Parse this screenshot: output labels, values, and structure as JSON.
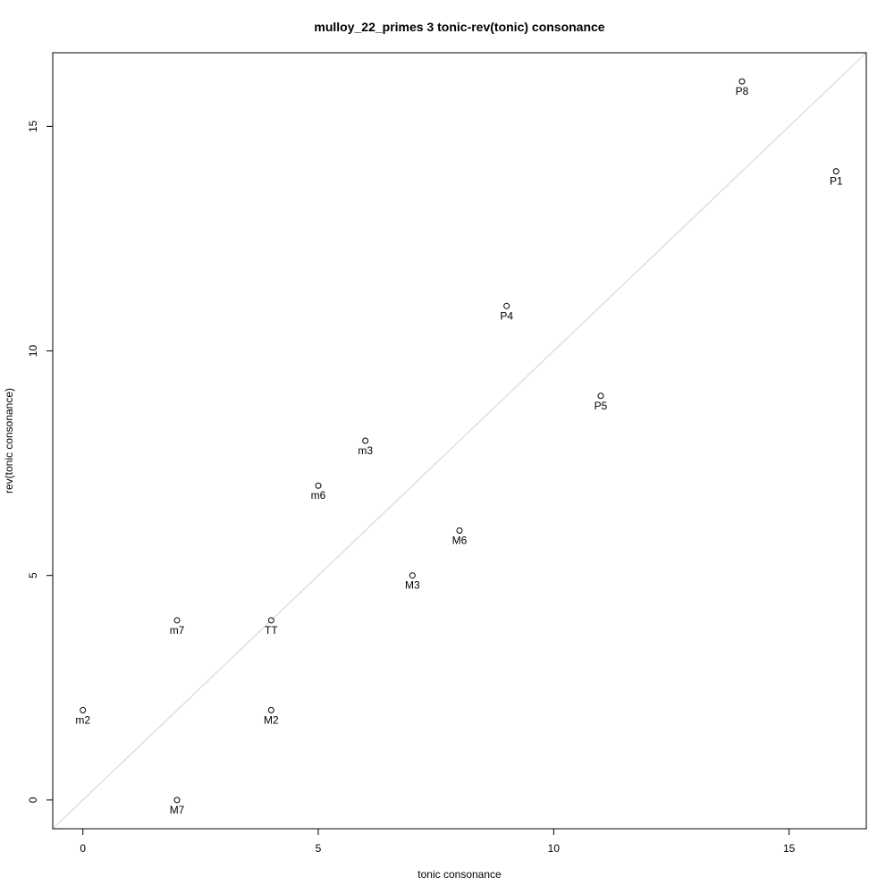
{
  "chart_data": {
    "type": "scatter",
    "title": "mulloy_22_primes 3 tonic-rev(tonic) consonance",
    "xlabel": "tonic consonance",
    "ylabel": "rev(tonic consonance)",
    "xlim": [
      -0.64,
      16.64
    ],
    "ylim": [
      -0.64,
      16.64
    ],
    "x_ticks": [
      0,
      5,
      10,
      15
    ],
    "y_ticks": [
      0,
      5,
      10,
      15
    ],
    "reference_line": {
      "slope": 1,
      "intercept": 0,
      "color": "#d9d9d9"
    },
    "points": [
      {
        "label": "P8",
        "x": 14,
        "y": 16
      },
      {
        "label": "P1",
        "x": 16,
        "y": 14
      },
      {
        "label": "P4",
        "x": 9,
        "y": 11
      },
      {
        "label": "P5",
        "x": 11,
        "y": 9
      },
      {
        "label": "m3",
        "x": 6,
        "y": 8
      },
      {
        "label": "m6",
        "x": 5,
        "y": 7
      },
      {
        "label": "M6",
        "x": 8,
        "y": 6
      },
      {
        "label": "M3",
        "x": 7,
        "y": 5
      },
      {
        "label": "m7",
        "x": 2,
        "y": 4
      },
      {
        "label": "TT",
        "x": 4,
        "y": 4
      },
      {
        "label": "m2",
        "x": 0,
        "y": 2
      },
      {
        "label": "M2",
        "x": 4,
        "y": 2
      },
      {
        "label": "M7",
        "x": 2,
        "y": 0
      }
    ]
  }
}
